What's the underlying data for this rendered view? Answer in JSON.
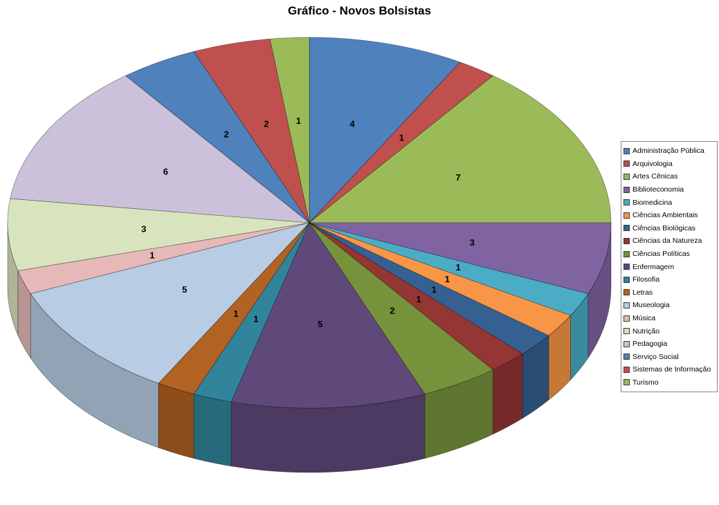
{
  "chart_data": {
    "type": "pie",
    "style": "3d",
    "title": "Gráfico - Novos Bolsistas",
    "legend_position": "right",
    "data_labels": "value",
    "categories": [
      "Administração Pública",
      "Arquivologia",
      "Artes Cênicas",
      "Biblioteconomia",
      "Biomedicina",
      "Ciências Ambientais",
      "Ciências Biológicas",
      "Ciências da Natureza",
      "Ciências Políticas",
      "Enfermagem",
      "Filosofia",
      "Letras",
      "Museologia",
      "Música",
      "Nutrição",
      "Pedagogia",
      "Serviço Social",
      "Sistemas de Informação",
      "Turismo"
    ],
    "values": [
      4,
      1,
      7,
      3,
      1,
      1,
      1,
      1,
      2,
      5,
      1,
      1,
      5,
      1,
      3,
      6,
      2,
      2,
      1
    ],
    "colors": [
      "#4F81BD",
      "#C0504D",
      "#9BBB59",
      "#8064A2",
      "#4BACC6",
      "#F79646",
      "#366092",
      "#943634",
      "#76933C",
      "#5F497A",
      "#31849B",
      "#B26222",
      "#B8CCE4",
      "#E6B9B8",
      "#D7E4BD",
      "#CCC1DA",
      "#4F81BD",
      "#C0504D",
      "#9BBB59"
    ],
    "total": 48
  }
}
